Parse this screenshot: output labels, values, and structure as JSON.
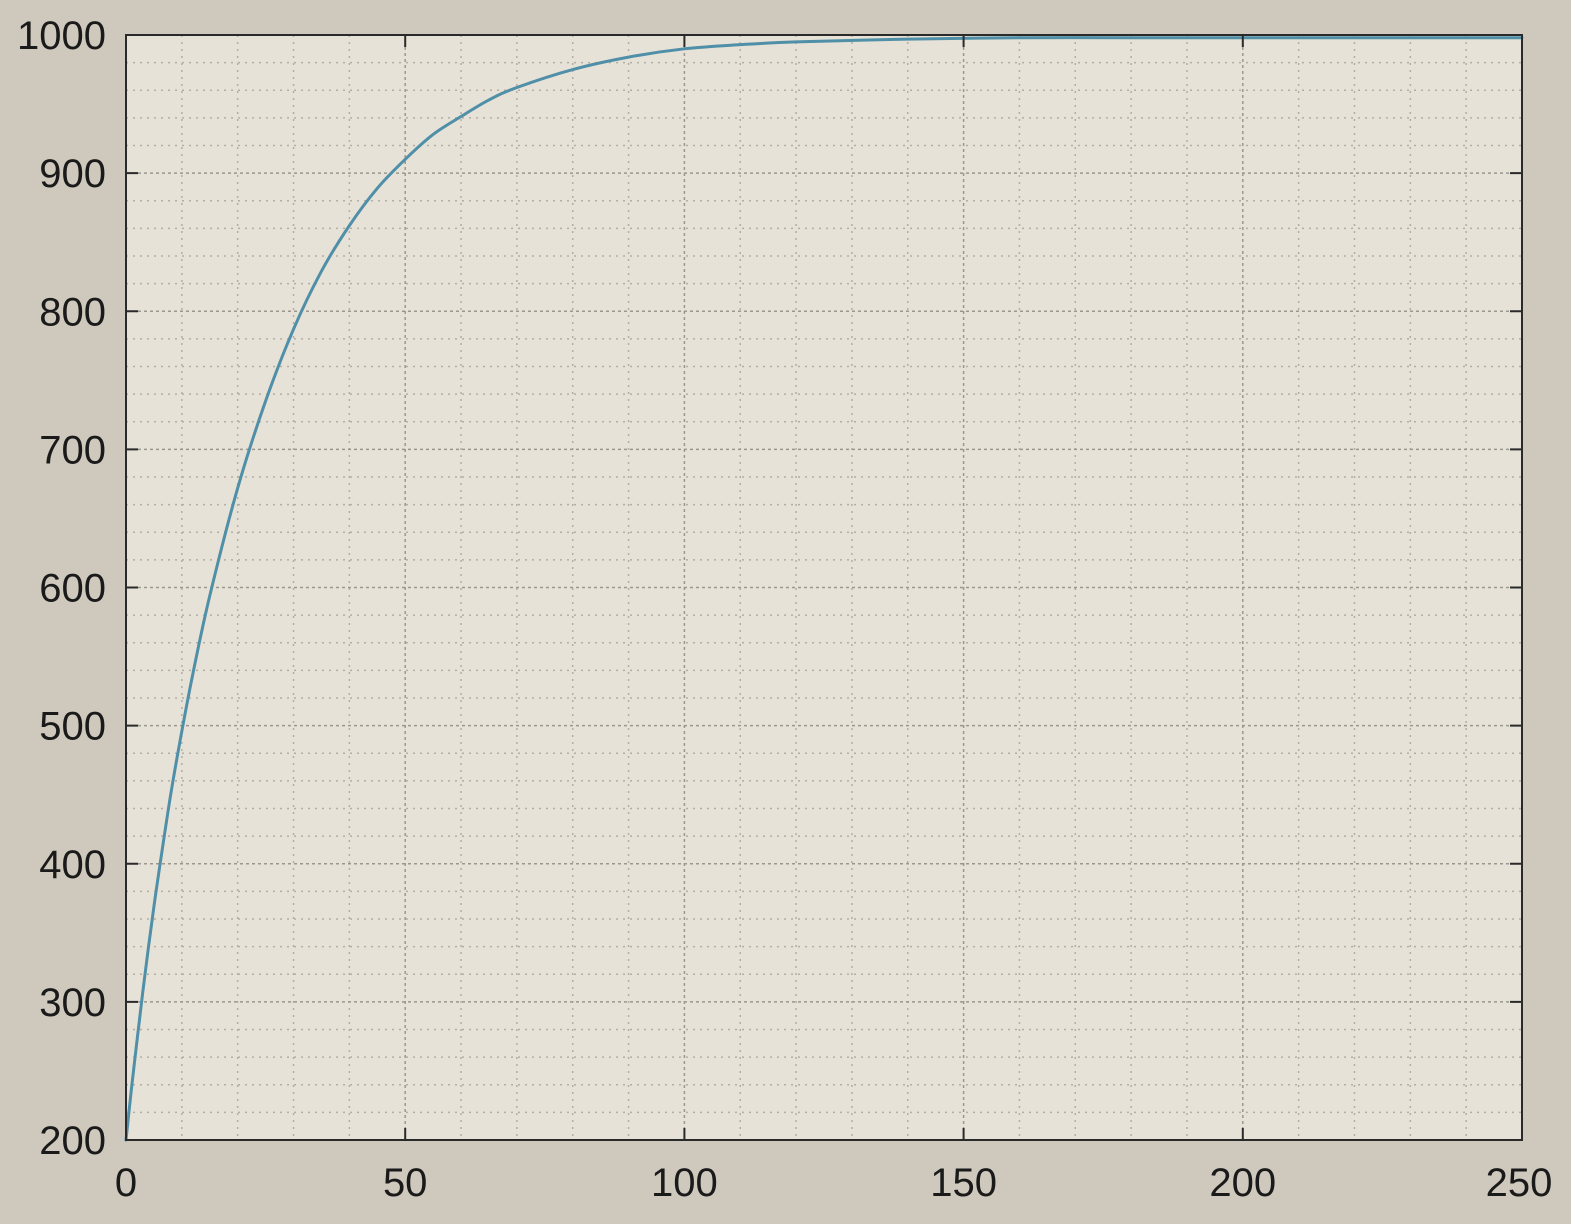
{
  "chart_data": {
    "type": "line",
    "title": "",
    "xlabel": "",
    "ylabel": "",
    "xlim": [
      0,
      250
    ],
    "ylim": [
      200,
      1000
    ],
    "x_ticks": [
      0,
      50,
      100,
      150,
      200,
      250
    ],
    "y_ticks": [
      200,
      300,
      400,
      500,
      600,
      700,
      800,
      900,
      1000
    ],
    "x_tick_labels": [
      "0",
      "50",
      "100",
      "150",
      "200",
      "250"
    ],
    "y_tick_labels": [
      "200",
      "300",
      "400",
      "500",
      "600",
      "700",
      "800",
      "900",
      "1000"
    ],
    "grid": true,
    "minor_grid": true,
    "series": [
      {
        "color": "#4f8fa8",
        "x": [
          0,
          1,
          2,
          3,
          4,
          5,
          6,
          8,
          10,
          12,
          15,
          20,
          25,
          30,
          35,
          40,
          45,
          50,
          55,
          60,
          65,
          70,
          80,
          90,
          100,
          110,
          120,
          140,
          160,
          180,
          200,
          220,
          250
        ],
        "y": [
          200,
          238,
          273,
          307,
          339,
          369,
          397,
          450,
          496,
          538,
          594,
          672,
          735,
          787,
          829,
          862,
          889,
          910,
          928,
          941,
          953,
          962,
          975,
          984,
          990,
          993,
          995,
          997,
          998,
          998,
          998,
          998,
          998
        ]
      }
    ],
    "colors": {
      "figure_background": "#cfc9bd",
      "axes_background": "#e7e2d7",
      "grid_major": "#9c978e",
      "grid_minor": "#b3aea5",
      "axis": "#2a2a2a"
    }
  }
}
